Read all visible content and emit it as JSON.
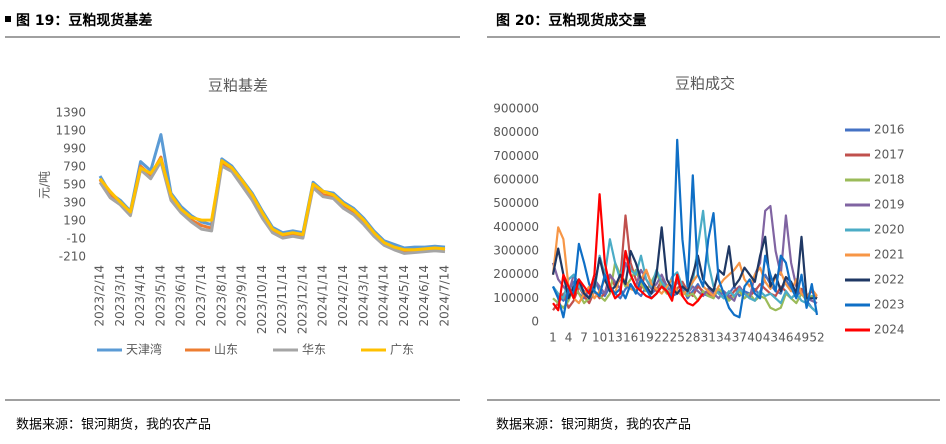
{
  "figures": [
    {
      "caption": "图 19：豆粕现货基差",
      "source": "数据来源：银河期货，我的农产品"
    },
    {
      "caption": "图 20：豆粕现货成交量",
      "source": "数据来源：银河期货，我的农产品"
    }
  ],
  "chart_data": [
    {
      "type": "line",
      "title": "豆粕基差",
      "y_label": "元/吨",
      "legend": "bottom",
      "categories": [
        "2023/2/14",
        null,
        "2023/3/14",
        null,
        "2023/4/14",
        null,
        "2023/5/14",
        null,
        "2023/6/14",
        null,
        "2023/7/14",
        null,
        "2023/8/14",
        null,
        "2023/9/14",
        null,
        "2023/10/14",
        null,
        "2023/11/14",
        null,
        "2023/12/14",
        null,
        "2024/1/14",
        null,
        "2024/2/14",
        null,
        "2024/3/14",
        null,
        "2024/4/14",
        null,
        "2024/5/14",
        null,
        "2024/6/14",
        null,
        "2024/7/14"
      ],
      "ylim": [
        -210,
        1390
      ],
      "yticks": [
        -210,
        -10,
        190,
        390,
        590,
        790,
        990,
        1190,
        1390
      ],
      "series": [
        {
          "name": "天津湾",
          "color": "#5b9bd5",
          "values": [
            690,
            500,
            420,
            300,
            850,
            750,
            1150,
            500,
            350,
            250,
            180,
            150,
            880,
            800,
            650,
            500,
            300,
            120,
            60,
            80,
            60,
            620,
            520,
            500,
            400,
            330,
            220,
            80,
            -30,
            -70,
            -110,
            -100,
            -100,
            -90,
            -100
          ]
        },
        {
          "name": "山东",
          "color": "#ed7d31",
          "values": [
            650,
            470,
            390,
            270,
            800,
            700,
            900,
            450,
            300,
            200,
            140,
            110,
            840,
            760,
            600,
            450,
            250,
            80,
            20,
            40,
            20,
            580,
            480,
            460,
            350,
            280,
            170,
            40,
            -60,
            -110,
            -150,
            -140,
            -130,
            -120,
            -130
          ]
        },
        {
          "name": "华东",
          "color": "#a5a5a5",
          "values": [
            620,
            450,
            370,
            250,
            760,
            660,
            850,
            420,
            280,
            180,
            100,
            80,
            800,
            740,
            580,
            420,
            220,
            60,
            0,
            20,
            0,
            560,
            460,
            440,
            330,
            260,
            150,
            20,
            -80,
            -130,
            -170,
            -160,
            -150,
            -140,
            -150
          ]
        },
        {
          "name": "广东",
          "color": "#ffc000",
          "values": [
            660,
            520,
            400,
            290,
            780,
            720,
            880,
            480,
            320,
            230,
            200,
            200,
            860,
            780,
            640,
            480,
            280,
            100,
            40,
            60,
            40,
            600,
            520,
            480,
            380,
            310,
            200,
            60,
            -50,
            -100,
            -130,
            -130,
            -120,
            -110,
            -120
          ]
        }
      ]
    },
    {
      "type": "line",
      "title": "豆粕成交",
      "legend": "right",
      "x": [
        1,
        2,
        3,
        4,
        5,
        6,
        7,
        8,
        9,
        10,
        11,
        12,
        13,
        14,
        15,
        16,
        17,
        18,
        19,
        20,
        21,
        22,
        23,
        24,
        25,
        26,
        27,
        28,
        29,
        30,
        31,
        32,
        33,
        34,
        35,
        36,
        37,
        38,
        39,
        40,
        41,
        42,
        43,
        44,
        45,
        46,
        47,
        48,
        49,
        50,
        51,
        52
      ],
      "xlim": [
        1,
        52
      ],
      "xticks": [
        1,
        4,
        7,
        10,
        13,
        16,
        19,
        22,
        25,
        28,
        31,
        34,
        37,
        40,
        43,
        46,
        49,
        52
      ],
      "ylim": [
        0,
        900000
      ],
      "yticks": [
        0,
        100000,
        200000,
        300000,
        400000,
        500000,
        600000,
        700000,
        800000,
        900000
      ],
      "series": [
        {
          "name": "2016",
          "color": "#4472c4",
          "values": [
            150000,
            110000,
            90000,
            130000,
            170000,
            120000,
            100000,
            140000,
            180000,
            130000,
            110000,
            150000,
            120000,
            100000,
            140000,
            160000,
            130000,
            110000,
            150000,
            120000,
            140000,
            170000,
            130000,
            110000,
            120000,
            150000,
            100000,
            130000,
            160000,
            120000,
            110000,
            140000,
            130000,
            100000,
            120000,
            150000,
            110000,
            130000,
            120000,
            140000,
            110000,
            200000,
            160000,
            130000,
            120000,
            180000,
            140000,
            110000,
            130000,
            90000,
            60000,
            40000
          ]
        },
        {
          "name": "2017",
          "color": "#c0504d",
          "values": [
            50000,
            80000,
            120000,
            60000,
            90000,
            150000,
            110000,
            80000,
            130000,
            100000,
            120000,
            200000,
            150000,
            180000,
            450000,
            250000,
            180000,
            140000,
            220000,
            160000,
            130000,
            180000,
            150000,
            120000,
            140000,
            170000,
            130000,
            110000,
            150000,
            130000,
            120000,
            110000,
            140000,
            120000,
            100000,
            130000,
            150000,
            120000,
            110000,
            130000,
            160000,
            140000,
            120000,
            110000,
            150000,
            130000,
            100000,
            120000,
            140000,
            110000,
            130000,
            100000
          ]
        },
        {
          "name": "2018",
          "color": "#9bbb59",
          "values": [
            100000,
            80000,
            60000,
            90000,
            150000,
            120000,
            80000,
            100000,
            130000,
            110000,
            90000,
            120000,
            250000,
            200000,
            150000,
            180000,
            220000,
            160000,
            130000,
            170000,
            210000,
            150000,
            120000,
            140000,
            180000,
            130000,
            110000,
            120000,
            90000,
            130000,
            110000,
            100000,
            140000,
            120000,
            90000,
            110000,
            130000,
            100000,
            120000,
            90000,
            110000,
            100000,
            60000,
            50000,
            60000,
            120000,
            100000,
            80000,
            120000,
            90000,
            110000,
            100000
          ]
        },
        {
          "name": "2019",
          "color": "#8064a2",
          "values": [
            250000,
            180000,
            150000,
            120000,
            200000,
            160000,
            130000,
            100000,
            180000,
            150000,
            120000,
            200000,
            170000,
            140000,
            250000,
            200000,
            150000,
            220000,
            180000,
            140000,
            160000,
            200000,
            150000,
            130000,
            170000,
            140000,
            120000,
            150000,
            130000,
            110000,
            140000,
            120000,
            100000,
            130000,
            110000,
            90000,
            150000,
            120000,
            100000,
            200000,
            250000,
            470000,
            490000,
            300000,
            200000,
            450000,
            250000,
            150000,
            120000,
            100000,
            90000,
            80000
          ]
        },
        {
          "name": "2020",
          "color": "#4bacc6",
          "values": [
            150000,
            120000,
            100000,
            180000,
            200000,
            150000,
            120000,
            100000,
            130000,
            280000,
            200000,
            350000,
            250000,
            180000,
            300000,
            220000,
            200000,
            280000,
            180000,
            150000,
            220000,
            170000,
            140000,
            190000,
            210000,
            150000,
            120000,
            170000,
            320000,
            470000,
            250000,
            150000,
            120000,
            100000,
            130000,
            110000,
            140000,
            120000,
            100000,
            90000,
            130000,
            110000,
            120000,
            100000,
            80000,
            130000,
            100000,
            120000,
            90000,
            80000,
            60000,
            40000
          ]
        },
        {
          "name": "2021",
          "color": "#f79646",
          "values": [
            200000,
            400000,
            350000,
            150000,
            100000,
            80000,
            120000,
            150000,
            100000,
            130000,
            180000,
            150000,
            120000,
            200000,
            170000,
            140000,
            130000,
            180000,
            220000,
            160000,
            140000,
            120000,
            150000,
            180000,
            130000,
            110000,
            140000,
            170000,
            200000,
            150000,
            130000,
            110000,
            150000,
            180000,
            200000,
            220000,
            250000,
            180000,
            150000,
            200000,
            230000,
            170000,
            140000,
            190000,
            210000,
            160000,
            130000,
            180000,
            120000,
            100000,
            140000,
            110000
          ]
        },
        {
          "name": "2022",
          "color": "#1f3864",
          "values": [
            200000,
            310000,
            200000,
            100000,
            150000,
            180000,
            120000,
            100000,
            150000,
            270000,
            180000,
            130000,
            150000,
            200000,
            160000,
            300000,
            250000,
            180000,
            150000,
            120000,
            200000,
            400000,
            180000,
            140000,
            120000,
            150000,
            130000,
            200000,
            280000,
            180000,
            150000,
            130000,
            220000,
            200000,
            320000,
            150000,
            180000,
            230000,
            200000,
            170000,
            280000,
            360000,
            150000,
            200000,
            130000,
            190000,
            170000,
            120000,
            360000,
            100000,
            100000,
            100000
          ]
        },
        {
          "name": "2023",
          "color": "#0f6fc6",
          "values": [
            150000,
            100000,
            20000,
            140000,
            120000,
            330000,
            250000,
            160000,
            130000,
            110000,
            200000,
            150000,
            120000,
            140000,
            100000,
            160000,
            120000,
            180000,
            140000,
            100000,
            120000,
            150000,
            130000,
            100000,
            770000,
            350000,
            150000,
            620000,
            200000,
            150000,
            350000,
            460000,
            180000,
            120000,
            60000,
            30000,
            20000,
            150000,
            180000,
            120000,
            100000,
            280000,
            200000,
            130000,
            280000,
            250000,
            150000,
            100000,
            200000,
            60000,
            160000,
            30000
          ]
        },
        {
          "name": "2024",
          "color": "#ff0000",
          "values": [
            80000,
            50000,
            200000,
            150000,
            100000,
            180000,
            150000,
            120000,
            200000,
            540000,
            250000,
            150000,
            100000,
            120000,
            300000,
            200000,
            150000,
            130000,
            110000,
            100000,
            120000,
            150000,
            130000,
            90000,
            200000,
            110000,
            80000,
            70000,
            90000,
            120000,
            null,
            null,
            null,
            null,
            null,
            null,
            null,
            null,
            null,
            null,
            null,
            null,
            null,
            null,
            null,
            null,
            null,
            null,
            null,
            null,
            null,
            null
          ]
        }
      ]
    }
  ]
}
